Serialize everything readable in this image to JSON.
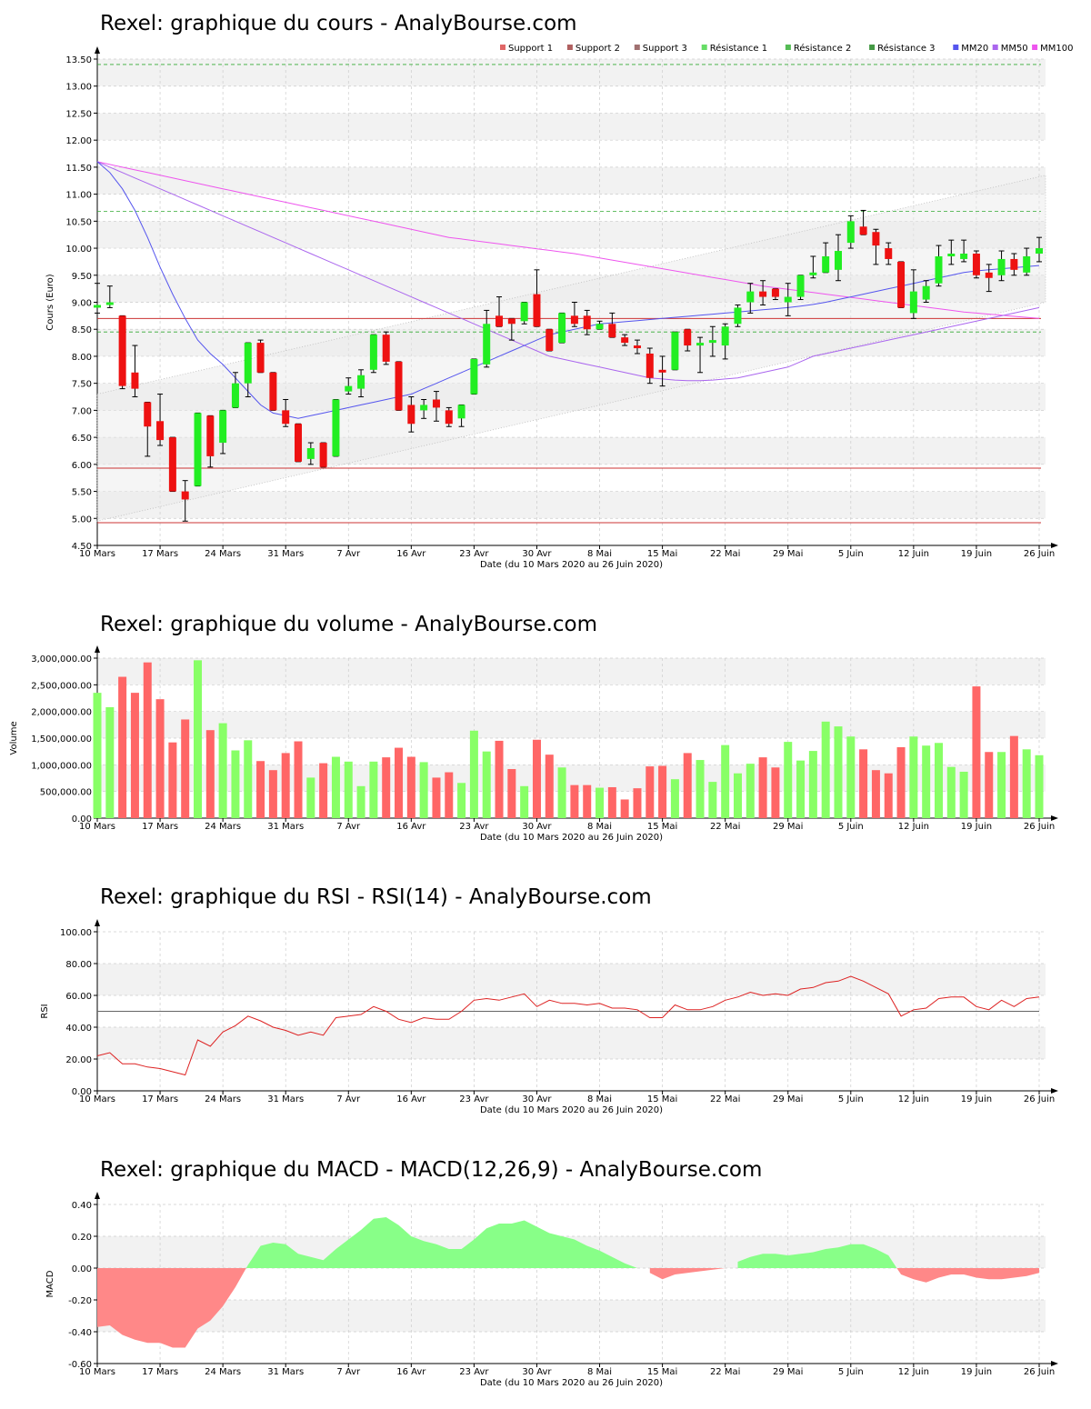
{
  "chart_data": [
    {
      "type": "candlestick",
      "title": "Rexel: graphique du cours - AnalyBourse.com",
      "xlabel": "Date (du 10 Mars 2020 au 26 Juin 2020)",
      "ylabel": "Cours (Euro)",
      "ylim": [
        4.5,
        13.5
      ],
      "yticks": [
        4.5,
        5.0,
        5.5,
        6.0,
        6.5,
        7.0,
        7.5,
        8.0,
        8.5,
        9.0,
        9.5,
        10.0,
        10.5,
        11.0,
        11.5,
        12.0,
        12.5,
        13.0,
        13.5
      ],
      "ytick_labels": [
        "4.50",
        "5.00",
        "5.50",
        "6.00",
        "6.50",
        "7.00",
        "7.50",
        "8.00",
        "8.50",
        "9.00",
        "9.50",
        "10.00",
        "10.50",
        "11.00",
        "11.50",
        "12.00",
        "12.50",
        "13.00",
        "13.50"
      ],
      "xtick_labels": [
        "10 Mars",
        "17 Mars",
        "24 Mars",
        "31 Mars",
        "7 Avr",
        "16 Avr",
        "23 Avr",
        "30 Avr",
        "8 Mai",
        "15 Mai",
        "22 Mai",
        "29 Mai",
        "5 Juin",
        "12 Juin",
        "19 Juin",
        "26 Juin"
      ],
      "xtick_index": [
        0,
        5,
        10,
        15,
        20,
        25,
        30,
        35,
        40,
        45,
        50,
        55,
        60,
        65,
        70,
        75
      ],
      "legend": [
        {
          "label": "Support 1",
          "color": "#e06666"
        },
        {
          "label": "Support 2",
          "color": "#b06060"
        },
        {
          "label": "Support 3",
          "color": "#a07070"
        },
        {
          "label": "Résistance 1",
          "color": "#66dd66"
        },
        {
          "label": "Résistance 2",
          "color": "#55bb55"
        },
        {
          "label": "Résistance 3",
          "color": "#449944"
        },
        {
          "label": "MM20",
          "color": "#5555ee"
        },
        {
          "label": "MM50",
          "color": "#aa66ee"
        },
        {
          "label": "MM100",
          "color": "#ee55ee"
        }
      ],
      "legend_position": "top-right",
      "grid": true,
      "support_levels": [
        8.7,
        5.93,
        4.92
      ],
      "resistance_levels": [
        13.4,
        10.68,
        8.45
      ],
      "colors": {
        "up": "#22ee22",
        "down": "#ee1111",
        "mm20": "#5555ee",
        "mm50": "#aa66ee",
        "mm100": "#ee55ee",
        "support": "#cc3333",
        "resistance": "#33aa33"
      },
      "ohlc": [
        [
          8.9,
          9.35,
          8.8,
          8.95
        ],
        [
          9.0,
          9.3,
          8.9,
          9.0
        ],
        [
          8.75,
          8.75,
          7.4,
          7.45
        ],
        [
          7.7,
          8.2,
          7.25,
          7.4
        ],
        [
          7.15,
          7.15,
          6.15,
          6.7
        ],
        [
          6.8,
          7.3,
          6.35,
          6.45
        ],
        [
          6.5,
          6.5,
          5.5,
          5.5
        ],
        [
          5.5,
          5.7,
          4.95,
          5.35
        ],
        [
          5.6,
          6.95,
          5.6,
          6.95
        ],
        [
          6.9,
          6.9,
          5.95,
          6.15
        ],
        [
          6.4,
          7.0,
          6.2,
          7.0
        ],
        [
          7.05,
          7.7,
          7.05,
          7.5
        ],
        [
          7.5,
          8.25,
          7.25,
          8.25
        ],
        [
          8.25,
          8.3,
          7.7,
          7.7
        ],
        [
          7.7,
          7.7,
          7.0,
          7.0
        ],
        [
          7.0,
          7.2,
          6.7,
          6.75
        ],
        [
          6.75,
          6.75,
          6.05,
          6.05
        ],
        [
          6.1,
          6.4,
          6.0,
          6.3
        ],
        [
          6.4,
          6.4,
          5.95,
          5.95
        ],
        [
          6.15,
          7.2,
          6.15,
          7.2
        ],
        [
          7.35,
          7.6,
          7.3,
          7.45
        ],
        [
          7.4,
          7.75,
          7.25,
          7.65
        ],
        [
          7.75,
          8.4,
          7.7,
          8.4
        ],
        [
          8.4,
          8.45,
          7.85,
          7.9
        ],
        [
          7.9,
          7.9,
          7.0,
          7.0
        ],
        [
          7.1,
          7.25,
          6.6,
          6.75
        ],
        [
          7.0,
          7.2,
          6.85,
          7.1
        ],
        [
          7.2,
          7.35,
          6.8,
          7.05
        ],
        [
          7.0,
          7.05,
          6.7,
          6.75
        ],
        [
          6.85,
          7.1,
          6.7,
          7.1
        ],
        [
          7.3,
          7.95,
          7.3,
          7.95
        ],
        [
          7.85,
          8.85,
          7.8,
          8.6
        ],
        [
          8.75,
          9.1,
          8.55,
          8.55
        ],
        [
          8.7,
          8.7,
          8.3,
          8.6
        ],
        [
          8.65,
          9.0,
          8.6,
          9.0
        ],
        [
          9.15,
          9.6,
          8.55,
          8.55
        ],
        [
          8.5,
          8.5,
          8.1,
          8.1
        ],
        [
          8.25,
          8.8,
          8.25,
          8.8
        ],
        [
          8.75,
          9.0,
          8.55,
          8.6
        ],
        [
          8.75,
          8.85,
          8.4,
          8.5
        ],
        [
          8.5,
          8.65,
          8.5,
          8.6
        ],
        [
          8.6,
          8.8,
          8.35,
          8.35
        ],
        [
          8.35,
          8.4,
          8.2,
          8.25
        ],
        [
          8.2,
          8.3,
          8.05,
          8.15
        ],
        [
          8.05,
          8.15,
          7.5,
          7.6
        ],
        [
          7.75,
          8.0,
          7.45,
          7.7
        ],
        [
          7.75,
          8.45,
          7.75,
          8.45
        ],
        [
          8.5,
          8.5,
          8.1,
          8.2
        ],
        [
          8.2,
          8.35,
          7.7,
          8.25
        ],
        [
          8.25,
          8.55,
          8.0,
          8.3
        ],
        [
          8.2,
          8.6,
          7.95,
          8.55
        ],
        [
          8.6,
          8.95,
          8.55,
          8.9
        ],
        [
          9.0,
          9.35,
          8.8,
          9.2
        ],
        [
          9.2,
          9.4,
          8.95,
          9.1
        ],
        [
          9.25,
          9.25,
          9.05,
          9.1
        ],
        [
          9.0,
          9.35,
          8.75,
          9.1
        ],
        [
          9.1,
          9.5,
          9.05,
          9.5
        ],
        [
          9.5,
          9.85,
          9.45,
          9.55
        ],
        [
          9.55,
          10.1,
          9.55,
          9.85
        ],
        [
          9.6,
          10.25,
          9.4,
          9.95
        ],
        [
          10.1,
          10.6,
          10.0,
          10.5
        ],
        [
          10.4,
          10.7,
          10.25,
          10.25
        ],
        [
          10.3,
          10.35,
          9.7,
          10.05
        ],
        [
          10.0,
          10.1,
          9.7,
          9.8
        ],
        [
          9.75,
          9.75,
          8.9,
          8.9
        ],
        [
          8.8,
          9.6,
          8.7,
          9.2
        ],
        [
          9.05,
          9.4,
          9.0,
          9.3
        ],
        [
          9.35,
          10.05,
          9.3,
          9.85
        ],
        [
          9.85,
          10.15,
          9.7,
          9.9
        ],
        [
          9.8,
          10.15,
          9.75,
          9.9
        ],
        [
          9.9,
          9.95,
          9.45,
          9.5
        ],
        [
          9.55,
          9.7,
          9.2,
          9.45
        ],
        [
          9.5,
          9.95,
          9.4,
          9.8
        ],
        [
          9.8,
          9.9,
          9.5,
          9.6
        ],
        [
          9.55,
          10.0,
          9.5,
          9.85
        ],
        [
          9.9,
          10.2,
          9.75,
          10.0
        ]
      ],
      "mm20": [
        11.6,
        11.4,
        11.1,
        10.7,
        10.2,
        9.65,
        9.15,
        8.7,
        8.3,
        8.05,
        7.85,
        7.6,
        7.35,
        7.1,
        6.95,
        6.9,
        6.85,
        6.9,
        6.95,
        7.0,
        7.05,
        7.1,
        7.15,
        7.2,
        7.25,
        7.3,
        7.4,
        7.5,
        7.6,
        7.7,
        7.8,
        7.9,
        8.0,
        8.1,
        8.2,
        8.3,
        8.4,
        8.45,
        8.5,
        8.55,
        8.6,
        8.62,
        8.64,
        8.66,
        8.68,
        8.7,
        8.72,
        8.74,
        8.76,
        8.78,
        8.8,
        8.82,
        8.84,
        8.86,
        8.88,
        8.9,
        8.93,
        8.96,
        9.0,
        9.05,
        9.1,
        9.15,
        9.2,
        9.25,
        9.3,
        9.35,
        9.4,
        9.45,
        9.5,
        9.55,
        9.58,
        9.6,
        9.62,
        9.64,
        9.66,
        9.68
      ],
      "mm50": [
        11.6,
        11.5,
        11.4,
        11.3,
        11.2,
        11.1,
        11.0,
        10.9,
        10.8,
        10.7,
        10.6,
        10.5,
        10.4,
        10.3,
        10.2,
        10.1,
        10.0,
        9.9,
        9.8,
        9.7,
        9.6,
        9.5,
        9.4,
        9.3,
        9.2,
        9.1,
        9.0,
        8.9,
        8.8,
        8.7,
        8.6,
        8.5,
        8.4,
        8.3,
        8.2,
        8.1,
        8.0,
        7.95,
        7.9,
        7.85,
        7.8,
        7.75,
        7.7,
        7.65,
        7.6,
        7.58,
        7.56,
        7.55,
        7.55,
        7.56,
        7.58,
        7.6,
        7.65,
        7.7,
        7.75,
        7.8,
        7.9,
        8.0,
        8.05,
        8.1,
        8.15,
        8.2,
        8.25,
        8.3,
        8.35,
        8.4,
        8.45,
        8.5,
        8.55,
        8.6,
        8.65,
        8.7,
        8.75,
        8.8,
        8.85,
        8.9
      ],
      "mm100": [
        11.6,
        11.55,
        11.5,
        11.45,
        11.4,
        11.35,
        11.3,
        11.25,
        11.2,
        11.15,
        11.1,
        11.05,
        11.0,
        10.95,
        10.9,
        10.85,
        10.8,
        10.75,
        10.7,
        10.65,
        10.6,
        10.55,
        10.5,
        10.45,
        10.4,
        10.35,
        10.3,
        10.25,
        10.2,
        10.17,
        10.14,
        10.11,
        10.08,
        10.05,
        10.02,
        9.99,
        9.96,
        9.93,
        9.9,
        9.86,
        9.82,
        9.78,
        9.74,
        9.7,
        9.66,
        9.62,
        9.58,
        9.54,
        9.5,
        9.46,
        9.42,
        9.38,
        9.34,
        9.3,
        9.27,
        9.24,
        9.21,
        9.18,
        9.15,
        9.12,
        9.09,
        9.06,
        9.03,
        9.0,
        8.97,
        8.94,
        8.91,
        8.88,
        8.85,
        8.82,
        8.8,
        8.78,
        8.76,
        8.74,
        8.72,
        8.7
      ]
    },
    {
      "type": "bar",
      "title": "Rexel: graphique du volume - AnalyBourse.com",
      "xlabel": "Date (du 10 Mars 2020 au 26 Juin 2020)",
      "ylabel": "Volume",
      "ylim": [
        0,
        3000000
      ],
      "yticks": [
        0,
        500000,
        1000000,
        1500000,
        2000000,
        2500000,
        3000000
      ],
      "ytick_labels": [
        "0.00",
        "500,000.00",
        "1,000,000.00",
        "1,500,000.00",
        "2,000,000.00",
        "2,500,000.00",
        "3,000,000.00"
      ],
      "xtick_labels": [
        "10 Mars",
        "17 Mars",
        "24 Mars",
        "31 Mars",
        "7 Avr",
        "16 Avr",
        "23 Avr",
        "30 Avr",
        "8 Mai",
        "15 Mai",
        "22 Mai",
        "29 Mai",
        "5 Juin",
        "12 Juin",
        "19 Juin",
        "26 Juin"
      ],
      "grid": true,
      "colors": {
        "up": "#88ff66",
        "down": "#ff6666"
      },
      "values": [
        2350000,
        2080000,
        2650000,
        2350000,
        2920000,
        2230000,
        1420000,
        1850000,
        2960000,
        1650000,
        1780000,
        1270000,
        1460000,
        1070000,
        900000,
        1220000,
        1440000,
        760000,
        1030000,
        1150000,
        1060000,
        600000,
        1060000,
        1140000,
        1320000,
        1150000,
        1050000,
        760000,
        860000,
        660000,
        1640000,
        1250000,
        1450000,
        920000,
        600000,
        1470000,
        1190000,
        950000,
        620000,
        620000,
        570000,
        580000,
        350000,
        560000,
        970000,
        980000,
        730000,
        1220000,
        1090000,
        680000,
        1370000,
        840000,
        1020000,
        1140000,
        950000,
        1430000,
        1080000,
        1260000,
        1810000,
        1720000,
        1530000,
        1290000,
        900000,
        840000,
        1330000,
        1530000,
        1360000,
        1410000,
        960000,
        870000,
        2470000,
        1240000,
        1240000,
        1540000,
        1290000,
        1180000
      ]
    },
    {
      "type": "line",
      "title": "Rexel: graphique du RSI - RSI(14) - AnalyBourse.com",
      "xlabel": "Date (du 10 Mars 2020 au 26 Juin 2020)",
      "ylabel": "RSI",
      "ylim": [
        0,
        100
      ],
      "yticks": [
        0,
        20,
        40,
        60,
        80,
        100
      ],
      "ytick_labels": [
        "0.00",
        "20.00",
        "40.00",
        "60.00",
        "80.00",
        "100.00"
      ],
      "xtick_labels": [
        "10 Mars",
        "17 Mars",
        "24 Mars",
        "31 Mars",
        "7 Avr",
        "16 Avr",
        "23 Avr",
        "30 Avr",
        "8 Mai",
        "15 Mai",
        "22 Mai",
        "29 Mai",
        "5 Juin",
        "12 Juin",
        "19 Juin",
        "26 Juin"
      ],
      "grid": true,
      "reference_line": 50,
      "colors": {
        "line": "#dd2222",
        "reference": "#666666"
      },
      "values": [
        22,
        24,
        17,
        17,
        15,
        14,
        12,
        10,
        32,
        28,
        37,
        41,
        47,
        44,
        40,
        38,
        35,
        37,
        35,
        46,
        47,
        48,
        53,
        50,
        45,
        43,
        46,
        45,
        45,
        50,
        57,
        58,
        57,
        59,
        61,
        53,
        57,
        55,
        55,
        54,
        55,
        52,
        52,
        51,
        46,
        46,
        54,
        51,
        51,
        53,
        57,
        59,
        62,
        60,
        61,
        60,
        64,
        65,
        68,
        69,
        72,
        69,
        65,
        61,
        47,
        51,
        52,
        58,
        59,
        59,
        53,
        51,
        57,
        53,
        58,
        59
      ]
    },
    {
      "type": "area",
      "title": "Rexel: graphique du MACD - MACD(12,26,9) - AnalyBourse.com",
      "xlabel": "Date (du 10 Mars 2020 au 26 Juin 2020)",
      "ylabel": "MACD",
      "ylim": [
        -0.6,
        0.4
      ],
      "yticks": [
        -0.6,
        -0.4,
        -0.2,
        0.0,
        0.2,
        0.4
      ],
      "ytick_labels": [
        "-0.60",
        "-0.40",
        "-0.20",
        "0.00",
        "0.20",
        "0.40"
      ],
      "xtick_labels": [
        "10 Mars",
        "17 Mars",
        "24 Mars",
        "31 Mars",
        "7 Avr",
        "16 Avr",
        "23 Avr",
        "30 Avr",
        "8 Mai",
        "15 Mai",
        "22 Mai",
        "29 Mai",
        "5 Juin",
        "12 Juin",
        "19 Juin",
        "26 Juin"
      ],
      "grid": true,
      "colors": {
        "positive": "#88ff88",
        "negative": "#ff8888"
      },
      "values": [
        -0.37,
        -0.36,
        -0.42,
        -0.45,
        -0.47,
        -0.47,
        -0.5,
        -0.5,
        -0.38,
        -0.33,
        -0.24,
        -0.12,
        0.02,
        0.14,
        0.16,
        0.15,
        0.09,
        0.07,
        0.05,
        0.12,
        0.18,
        0.24,
        0.31,
        0.32,
        0.27,
        0.2,
        0.17,
        0.15,
        0.12,
        0.12,
        0.18,
        0.25,
        0.28,
        0.28,
        0.3,
        0.26,
        0.22,
        0.2,
        0.18,
        0.14,
        0.11,
        0.07,
        0.03,
        0.0,
        -0.03,
        -0.07,
        -0.04,
        -0.03,
        -0.02,
        -0.01,
        0.0,
        0.04,
        0.07,
        0.09,
        0.09,
        0.08,
        0.09,
        0.1,
        0.12,
        0.13,
        0.15,
        0.15,
        0.12,
        0.08,
        -0.04,
        -0.07,
        -0.09,
        -0.06,
        -0.04,
        -0.04,
        -0.06,
        -0.07,
        -0.07,
        -0.06,
        -0.05,
        -0.03
      ]
    }
  ]
}
